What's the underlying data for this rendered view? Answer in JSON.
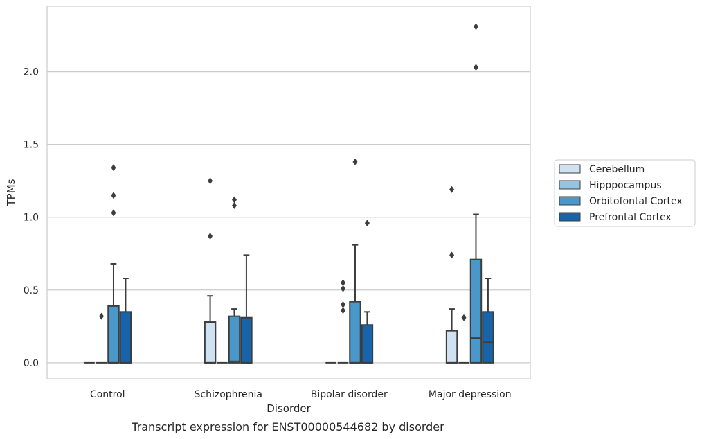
{
  "chart_data": {
    "type": "box",
    "title": "",
    "caption": "Transcript expression for ENST00000544682 by disorder",
    "xlabel": "Disorder",
    "ylabel": "TPMs",
    "ylim": [
      -0.11,
      2.45
    ],
    "yticks": [
      "0.0",
      "0.5",
      "1.0",
      "1.5",
      "2.0"
    ],
    "grid": "horizontal",
    "legend_position": "right",
    "categories": [
      "Control",
      "Schizophrenia",
      "Bipolar disorder",
      "Major depression"
    ],
    "series": [
      {
        "name": "Cerebellum",
        "color": "#d0e1f2",
        "boxes": [
          {
            "q1": 0,
            "median": 0,
            "q3": 0,
            "whislo": 0,
            "whishi": 0,
            "outliers": []
          },
          {
            "q1": 0,
            "median": 0,
            "q3": 0.28,
            "whislo": 0,
            "whishi": 0.46,
            "outliers": [
              0.87,
              1.25
            ]
          },
          {
            "q1": 0,
            "median": 0,
            "q3": 0,
            "whislo": 0,
            "whishi": 0,
            "outliers": []
          },
          {
            "q1": 0,
            "median": 0,
            "q3": 0.22,
            "whislo": 0,
            "whishi": 0.37,
            "outliers": [
              0.74,
              1.19
            ]
          }
        ]
      },
      {
        "name": "Hipppocampus",
        "color": "#94c4df",
        "boxes": [
          {
            "q1": 0,
            "median": 0,
            "q3": 0,
            "whislo": 0,
            "whishi": 0,
            "outliers": [
              0.32
            ]
          },
          {
            "q1": 0,
            "median": 0,
            "q3": 0,
            "whislo": 0,
            "whishi": 0,
            "outliers": []
          },
          {
            "q1": 0,
            "median": 0,
            "q3": 0,
            "whislo": 0,
            "whishi": 0,
            "outliers": [
              0.36,
              0.4,
              0.51,
              0.55
            ]
          },
          {
            "q1": 0,
            "median": 0,
            "q3": 0,
            "whislo": 0,
            "whishi": 0,
            "outliers": [
              0.31
            ]
          }
        ]
      },
      {
        "name": "Orbitofontal Cortex",
        "color": "#4a98c9",
        "boxes": [
          {
            "q1": 0,
            "median": 0,
            "q3": 0.39,
            "whislo": 0,
            "whishi": 0.68,
            "outliers": [
              1.03,
              1.15,
              1.34
            ]
          },
          {
            "q1": 0,
            "median": 0.01,
            "q3": 0.32,
            "whislo": 0,
            "whishi": 0.37,
            "outliers": [
              1.08,
              1.12
            ]
          },
          {
            "q1": 0,
            "median": 0,
            "q3": 0.42,
            "whislo": 0,
            "whishi": 0.81,
            "outliers": [
              1.38
            ]
          },
          {
            "q1": 0,
            "median": 0.17,
            "q3": 0.71,
            "whislo": 0,
            "whishi": 1.02,
            "outliers": [
              2.03,
              2.31
            ]
          }
        ]
      },
      {
        "name": "Prefrontal Cortex",
        "color": "#1764ab",
        "boxes": [
          {
            "q1": 0,
            "median": 0,
            "q3": 0.35,
            "whislo": 0,
            "whishi": 0.58,
            "outliers": []
          },
          {
            "q1": 0,
            "median": 0,
            "q3": 0.31,
            "whislo": 0,
            "whishi": 0.74,
            "outliers": []
          },
          {
            "q1": 0,
            "median": 0,
            "q3": 0.26,
            "whislo": 0,
            "whishi": 0.35,
            "outliers": [
              0.96
            ]
          },
          {
            "q1": 0,
            "median": 0.14,
            "q3": 0.35,
            "whislo": 0,
            "whishi": 0.58,
            "outliers": []
          }
        ]
      }
    ]
  }
}
